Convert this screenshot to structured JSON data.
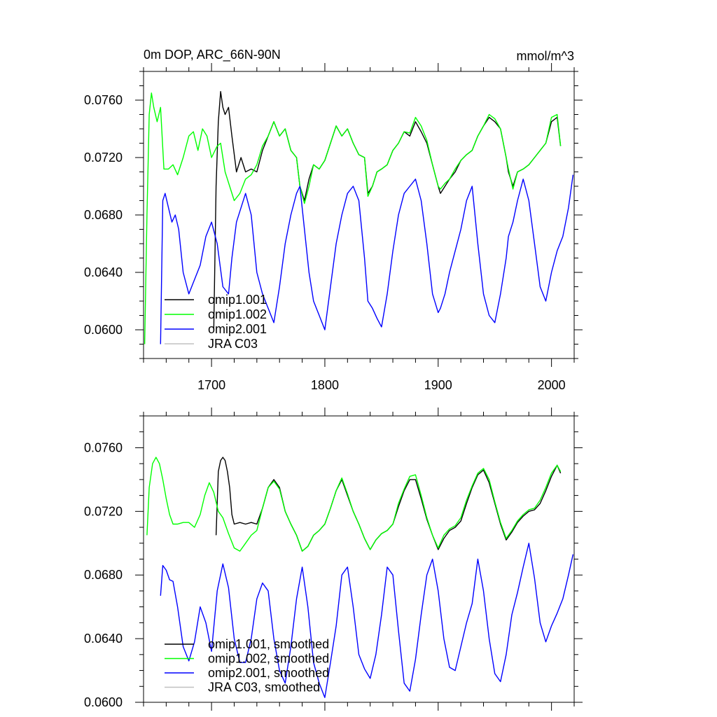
{
  "chart_data": [
    {
      "type": "line",
      "title_left": "0m DOP, ARC_66N-90N",
      "title_right": "mmol/m^3",
      "xlim": [
        1640,
        2020
      ],
      "ylim": [
        0.058,
        0.078
      ],
      "xticks": [
        1700,
        1800,
        1900,
        2000
      ],
      "yticks": [
        0.06,
        0.064,
        0.068,
        0.072,
        0.076
      ],
      "xtick_labels": [
        "1700",
        "1800",
        "1900",
        "2000"
      ],
      "ytick_labels": [
        "0.0600",
        "0.0640",
        "0.0680",
        "0.0720",
        "0.0760"
      ],
      "legend_position": "bottom-left",
      "legend": [
        "omip1.001",
        "omip1.002",
        "omip2.001",
        "JRA C03"
      ],
      "series": [
        {
          "name": "omip1.001",
          "color": "#000000",
          "x": [
            1702,
            1704,
            1706,
            1708,
            1710,
            1712,
            1715,
            1718,
            1722,
            1726,
            1730,
            1735,
            1740,
            1745,
            1750,
            1755,
            1760,
            1765,
            1770,
            1775,
            1778,
            1782,
            1786,
            1790,
            1795,
            1800,
            1805,
            1810,
            1815,
            1820,
            1825,
            1830,
            1835,
            1838,
            1842,
            1846,
            1850,
            1855,
            1860,
            1865,
            1870,
            1875,
            1880,
            1885,
            1890,
            1895,
            1900,
            1902,
            1906,
            1910,
            1915,
            1920,
            1925,
            1930,
            1935,
            1940,
            1945,
            1950,
            1955,
            1960,
            1962,
            1966,
            1970,
            1975,
            1980,
            1985,
            1990,
            1995,
            2000,
            2005,
            2008
          ],
          "y": [
            0.06,
            0.07,
            0.0745,
            0.0766,
            0.0755,
            0.075,
            0.0755,
            0.0735,
            0.071,
            0.072,
            0.071,
            0.0712,
            0.071,
            0.0725,
            0.0735,
            0.0745,
            0.0735,
            0.074,
            0.0725,
            0.072,
            0.07,
            0.069,
            0.0705,
            0.0715,
            0.0712,
            0.0718,
            0.073,
            0.0742,
            0.0735,
            0.074,
            0.073,
            0.0722,
            0.072,
            0.0695,
            0.07,
            0.071,
            0.0712,
            0.0715,
            0.0725,
            0.073,
            0.0738,
            0.0735,
            0.0745,
            0.0738,
            0.073,
            0.0715,
            0.07,
            0.0695,
            0.07,
            0.0705,
            0.071,
            0.0718,
            0.0722,
            0.0725,
            0.0735,
            0.0742,
            0.0748,
            0.0745,
            0.074,
            0.072,
            0.071,
            0.07,
            0.071,
            0.0712,
            0.0715,
            0.072,
            0.0725,
            0.073,
            0.0745,
            0.0748,
            0.0728
          ]
        },
        {
          "name": "omip1.002",
          "color": "#00ff00",
          "x": [
            1641,
            1643,
            1645,
            1647,
            1649,
            1652,
            1655,
            1658,
            1662,
            1666,
            1670,
            1675,
            1680,
            1684,
            1688,
            1692,
            1696,
            1700,
            1705,
            1708,
            1712,
            1716,
            1720,
            1725,
            1730,
            1735,
            1740,
            1745,
            1750,
            1755,
            1760,
            1765,
            1770,
            1775,
            1778,
            1782,
            1786,
            1790,
            1795,
            1800,
            1805,
            1810,
            1815,
            1820,
            1825,
            1830,
            1835,
            1838,
            1842,
            1846,
            1850,
            1855,
            1860,
            1865,
            1870,
            1875,
            1880,
            1885,
            1890,
            1895,
            1900,
            1902,
            1906,
            1910,
            1915,
            1920,
            1925,
            1930,
            1935,
            1940,
            1945,
            1950,
            1955,
            1960,
            1962,
            1966,
            1970,
            1975,
            1980,
            1985,
            1990,
            1995,
            2000,
            2005,
            2008
          ],
          "y": [
            0.059,
            0.068,
            0.075,
            0.0765,
            0.0755,
            0.0745,
            0.0755,
            0.0712,
            0.0712,
            0.0715,
            0.0708,
            0.072,
            0.0735,
            0.0738,
            0.0725,
            0.074,
            0.0735,
            0.072,
            0.0728,
            0.073,
            0.071,
            0.07,
            0.069,
            0.0695,
            0.0705,
            0.0708,
            0.0715,
            0.0728,
            0.0735,
            0.0745,
            0.0735,
            0.074,
            0.0725,
            0.072,
            0.07,
            0.0688,
            0.07,
            0.0715,
            0.0712,
            0.0718,
            0.073,
            0.0742,
            0.0735,
            0.074,
            0.073,
            0.0722,
            0.072,
            0.0693,
            0.07,
            0.071,
            0.0712,
            0.0715,
            0.0725,
            0.073,
            0.0738,
            0.0737,
            0.0748,
            0.0742,
            0.0732,
            0.0715,
            0.07,
            0.0698,
            0.0702,
            0.0705,
            0.0712,
            0.0718,
            0.0722,
            0.0725,
            0.0735,
            0.0742,
            0.075,
            0.0747,
            0.074,
            0.072,
            0.0712,
            0.0698,
            0.071,
            0.0712,
            0.0715,
            0.072,
            0.0725,
            0.073,
            0.0748,
            0.075,
            0.0728
          ]
        },
        {
          "name": "omip2.001",
          "color": "#0000ff",
          "x": [
            1655,
            1657,
            1659,
            1662,
            1665,
            1668,
            1671,
            1675,
            1680,
            1685,
            1690,
            1695,
            1700,
            1705,
            1710,
            1715,
            1718,
            1722,
            1726,
            1730,
            1735,
            1740,
            1745,
            1750,
            1755,
            1760,
            1765,
            1770,
            1775,
            1778,
            1782,
            1786,
            1790,
            1795,
            1800,
            1805,
            1810,
            1815,
            1820,
            1825,
            1830,
            1835,
            1838,
            1842,
            1846,
            1850,
            1855,
            1860,
            1865,
            1870,
            1875,
            1880,
            1885,
            1890,
            1895,
            1900,
            1902,
            1906,
            1910,
            1915,
            1920,
            1925,
            1930,
            1935,
            1940,
            1945,
            1950,
            1955,
            1960,
            1962,
            1966,
            1970,
            1975,
            1980,
            1985,
            1990,
            1995,
            2000,
            2005,
            2010,
            2015,
            2019
          ],
          "y": [
            0.059,
            0.069,
            0.0695,
            0.0685,
            0.0675,
            0.068,
            0.067,
            0.064,
            0.0625,
            0.0635,
            0.0645,
            0.0665,
            0.0675,
            0.066,
            0.063,
            0.0625,
            0.065,
            0.0675,
            0.0685,
            0.0695,
            0.068,
            0.064,
            0.0625,
            0.0615,
            0.0605,
            0.063,
            0.066,
            0.068,
            0.0695,
            0.07,
            0.067,
            0.064,
            0.062,
            0.061,
            0.06,
            0.063,
            0.066,
            0.068,
            0.0695,
            0.07,
            0.069,
            0.065,
            0.062,
            0.0615,
            0.0608,
            0.0602,
            0.0625,
            0.0655,
            0.068,
            0.0695,
            0.07,
            0.0705,
            0.069,
            0.066,
            0.0625,
            0.0612,
            0.0615,
            0.0625,
            0.064,
            0.0655,
            0.067,
            0.069,
            0.07,
            0.066,
            0.0625,
            0.061,
            0.0605,
            0.0625,
            0.065,
            0.0665,
            0.0675,
            0.069,
            0.0705,
            0.069,
            0.066,
            0.063,
            0.062,
            0.064,
            0.0655,
            0.0665,
            0.0685,
            0.0708
          ]
        },
        {
          "name": "JRA C03",
          "color": "#c0c0c0",
          "x": [],
          "y": []
        }
      ]
    },
    {
      "type": "line",
      "xlim": [
        1640,
        2020
      ],
      "ylim": [
        0.06,
        0.078
      ],
      "xticks": [
        1700,
        1800,
        1900,
        2000
      ],
      "yticks": [
        0.06,
        0.064,
        0.068,
        0.072,
        0.076
      ],
      "ytick_labels": [
        "0.0600",
        "0.0640",
        "0.0680",
        "0.0720",
        "0.0760"
      ],
      "legend_position": "bottom-left",
      "legend": [
        "omip1.001, smoothed",
        "omip1.002, smoothed",
        "omip2.001, smoothed",
        "JRA C03, smoothed"
      ],
      "series": [
        {
          "name": "omip1.001, smoothed",
          "color": "#000000",
          "x": [
            1704,
            1706,
            1708,
            1710,
            1712,
            1714,
            1716,
            1718,
            1720,
            1725,
            1730,
            1735,
            1740,
            1745,
            1750,
            1755,
            1760,
            1765,
            1770,
            1775,
            1780,
            1785,
            1790,
            1795,
            1800,
            1805,
            1810,
            1815,
            1820,
            1825,
            1830,
            1835,
            1840,
            1845,
            1850,
            1855,
            1860,
            1865,
            1870,
            1875,
            1880,
            1885,
            1890,
            1895,
            1900,
            1905,
            1910,
            1915,
            1920,
            1925,
            1930,
            1935,
            1940,
            1945,
            1950,
            1955,
            1960,
            1965,
            1970,
            1975,
            1980,
            1985,
            1990,
            1995,
            2000,
            2005,
            2008
          ],
          "y": [
            0.0705,
            0.0745,
            0.0752,
            0.0754,
            0.0752,
            0.0745,
            0.0735,
            0.0718,
            0.0712,
            0.0713,
            0.0712,
            0.0713,
            0.0712,
            0.0722,
            0.0735,
            0.074,
            0.0735,
            0.072,
            0.0712,
            0.0705,
            0.0695,
            0.0698,
            0.0705,
            0.0708,
            0.0712,
            0.0722,
            0.0733,
            0.074,
            0.073,
            0.072,
            0.0712,
            0.0703,
            0.0696,
            0.0702,
            0.0706,
            0.0708,
            0.0712,
            0.0723,
            0.0733,
            0.074,
            0.074,
            0.0728,
            0.0715,
            0.0705,
            0.0696,
            0.0703,
            0.0708,
            0.071,
            0.0714,
            0.0725,
            0.0735,
            0.0743,
            0.0746,
            0.0738,
            0.0725,
            0.0712,
            0.0702,
            0.0707,
            0.0713,
            0.0717,
            0.072,
            0.0721,
            0.0725,
            0.0733,
            0.0742,
            0.0749,
            0.0744
          ]
        },
        {
          "name": "omip1.002, smoothed",
          "color": "#00ff00",
          "x": [
            1643,
            1645,
            1648,
            1651,
            1654,
            1657,
            1660,
            1663,
            1666,
            1670,
            1675,
            1680,
            1685,
            1690,
            1694,
            1698,
            1702,
            1706,
            1710,
            1715,
            1720,
            1725,
            1730,
            1735,
            1740,
            1745,
            1750,
            1755,
            1760,
            1765,
            1770,
            1775,
            1780,
            1785,
            1790,
            1795,
            1800,
            1805,
            1810,
            1815,
            1820,
            1825,
            1830,
            1835,
            1840,
            1845,
            1850,
            1855,
            1860,
            1865,
            1870,
            1875,
            1880,
            1885,
            1890,
            1895,
            1900,
            1905,
            1910,
            1915,
            1920,
            1925,
            1930,
            1935,
            1940,
            1945,
            1950,
            1955,
            1960,
            1965,
            1970,
            1975,
            1980,
            1985,
            1990,
            1995,
            2000,
            2005,
            2008
          ],
          "y": [
            0.0705,
            0.0735,
            0.075,
            0.0754,
            0.075,
            0.074,
            0.0728,
            0.0718,
            0.0712,
            0.0712,
            0.0713,
            0.0713,
            0.071,
            0.0718,
            0.073,
            0.0738,
            0.0732,
            0.072,
            0.0716,
            0.0706,
            0.0697,
            0.0695,
            0.07,
            0.0705,
            0.0708,
            0.0722,
            0.0735,
            0.0739,
            0.0734,
            0.072,
            0.0712,
            0.0705,
            0.0695,
            0.0698,
            0.0705,
            0.0708,
            0.0712,
            0.0722,
            0.0733,
            0.0741,
            0.0731,
            0.072,
            0.0712,
            0.0703,
            0.0696,
            0.0702,
            0.0706,
            0.0708,
            0.0712,
            0.0725,
            0.0734,
            0.0742,
            0.0743,
            0.073,
            0.0716,
            0.0705,
            0.0697,
            0.0705,
            0.0709,
            0.0711,
            0.0716,
            0.0727,
            0.0736,
            0.0744,
            0.0747,
            0.074,
            0.0726,
            0.0713,
            0.0703,
            0.0708,
            0.0714,
            0.0718,
            0.0721,
            0.0722,
            0.0727,
            0.0735,
            0.0744,
            0.0749,
            0.0745
          ]
        },
        {
          "name": "omip2.001, smoothed",
          "color": "#0000ff",
          "x": [
            1655,
            1657,
            1660,
            1663,
            1666,
            1670,
            1675,
            1680,
            1685,
            1690,
            1695,
            1700,
            1705,
            1710,
            1715,
            1720,
            1725,
            1730,
            1735,
            1740,
            1745,
            1750,
            1755,
            1760,
            1765,
            1770,
            1775,
            1780,
            1785,
            1790,
            1795,
            1800,
            1805,
            1810,
            1815,
            1820,
            1825,
            1830,
            1835,
            1840,
            1845,
            1850,
            1855,
            1860,
            1865,
            1870,
            1875,
            1880,
            1885,
            1890,
            1895,
            1900,
            1905,
            1910,
            1915,
            1920,
            1925,
            1930,
            1935,
            1940,
            1945,
            1950,
            1955,
            1960,
            1965,
            1970,
            1975,
            1980,
            1985,
            1990,
            1995,
            2000,
            2005,
            2010,
            2015,
            2019
          ],
          "y": [
            0.0667,
            0.0686,
            0.0683,
            0.0677,
            0.0676,
            0.066,
            0.0635,
            0.0626,
            0.0638,
            0.066,
            0.065,
            0.0632,
            0.067,
            0.0687,
            0.0672,
            0.064,
            0.0625,
            0.0625,
            0.064,
            0.0665,
            0.0675,
            0.067,
            0.064,
            0.062,
            0.0612,
            0.0635,
            0.0665,
            0.0685,
            0.066,
            0.0625,
            0.0612,
            0.0603,
            0.0625,
            0.0648,
            0.068,
            0.0685,
            0.066,
            0.063,
            0.0621,
            0.0615,
            0.063,
            0.0655,
            0.0685,
            0.068,
            0.0645,
            0.0612,
            0.0607,
            0.0627,
            0.0655,
            0.068,
            0.069,
            0.067,
            0.064,
            0.0622,
            0.062,
            0.0635,
            0.065,
            0.0662,
            0.069,
            0.067,
            0.064,
            0.0618,
            0.0613,
            0.063,
            0.0655,
            0.0669,
            0.0685,
            0.07,
            0.0678,
            0.065,
            0.0638,
            0.0648,
            0.0656,
            0.0665,
            0.068,
            0.0693
          ]
        },
        {
          "name": "JRA C03, smoothed",
          "color": "#c0c0c0",
          "x": [],
          "y": []
        }
      ]
    }
  ]
}
